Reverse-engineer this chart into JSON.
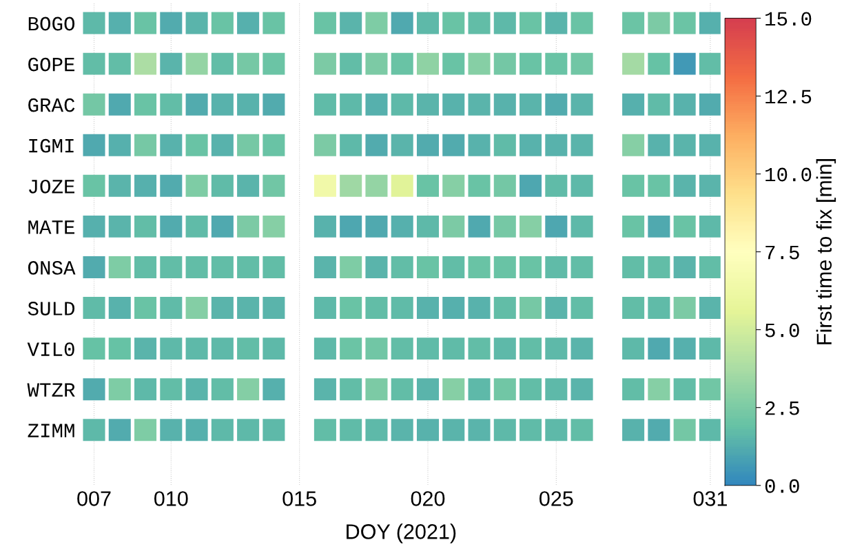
{
  "chart_data": {
    "type": "heatmap",
    "xlabel": "DOY (2021)",
    "clabel": "First time to fix [min]",
    "categories": [
      "007",
      null,
      null,
      "010",
      null,
      null,
      null,
      null,
      "015",
      null,
      null,
      null,
      null,
      "020",
      null,
      null,
      null,
      null,
      "025",
      null,
      null,
      null,
      null,
      null,
      "031"
    ],
    "y_categories": [
      "BOGO",
      "GOPE",
      "GRAC",
      "IGMI",
      "JOZE",
      "MATE",
      "ONSA",
      "SULD",
      "VIL0",
      "WTZR",
      "ZIMM"
    ],
    "cells": [
      [
        1.6,
        1.3,
        2.0,
        1.2,
        1.5,
        2.0,
        1.3,
        2.0,
        null,
        2.0,
        1.5,
        2.6,
        1.1,
        1.6,
        2.0,
        1.8,
        1.6,
        2.0,
        1.5,
        2.0,
        null,
        2.1,
        2.5,
        2.1,
        1.3
      ],
      [
        1.8,
        1.8,
        3.8,
        1.5,
        3.2,
        1.8,
        2.4,
        2.1,
        null,
        2.5,
        1.8,
        2.5,
        2.0,
        3.0,
        2.0,
        2.8,
        2.3,
        2.0,
        2.0,
        2.2,
        null,
        3.6,
        1.9,
        0.6,
        1.8
      ],
      [
        2.3,
        1.1,
        2.0,
        1.8,
        1.2,
        1.4,
        1.4,
        1.2,
        null,
        1.7,
        1.6,
        1.3,
        1.6,
        1.5,
        1.4,
        1.5,
        1.4,
        1.5,
        1.2,
        1.5,
        null,
        1.3,
        1.7,
        1.4,
        1.2
      ],
      [
        1.1,
        1.3,
        2.4,
        1.4,
        2.0,
        1.4,
        2.4,
        2.0,
        null,
        2.5,
        1.6,
        1.2,
        1.5,
        1.2,
        1.2,
        1.4,
        1.7,
        1.4,
        1.4,
        1.5,
        null,
        2.8,
        1.4,
        1.5,
        1.4
      ],
      [
        2.0,
        1.5,
        1.3,
        1.2,
        2.6,
        1.7,
        1.5,
        2.2,
        null,
        6.5,
        3.5,
        3.2,
        5.5,
        2.0,
        2.8,
        2.0,
        2.3,
        1.0,
        1.7,
        1.6,
        null,
        2.0,
        2.0,
        1.5,
        1.5
      ],
      [
        1.3,
        1.5,
        1.8,
        1.2,
        1.7,
        1.1,
        2.5,
        2.8,
        null,
        1.4,
        1.0,
        1.1,
        1.3,
        1.6,
        2.5,
        1.1,
        2.4,
        2.8,
        1.0,
        1.6,
        null,
        2.0,
        1.1,
        2.0,
        1.6
      ],
      [
        1.2,
        2.6,
        1.8,
        1.8,
        1.8,
        1.8,
        1.8,
        1.8,
        null,
        1.5,
        2.6,
        1.5,
        1.8,
        2.0,
        1.8,
        2.0,
        2.0,
        2.0,
        1.7,
        1.8,
        null,
        1.8,
        1.8,
        1.5,
        1.8
      ],
      [
        1.7,
        1.4,
        2.0,
        1.7,
        2.7,
        1.5,
        1.5,
        1.5,
        null,
        1.6,
        2.0,
        1.8,
        1.7,
        1.4,
        1.3,
        1.4,
        1.8,
        2.4,
        1.5,
        1.8,
        null,
        1.8,
        1.7,
        2.5,
        1.5
      ],
      [
        1.9,
        1.9,
        1.5,
        1.6,
        1.6,
        1.6,
        1.8,
        1.6,
        null,
        1.6,
        2.1,
        2.2,
        1.8,
        1.7,
        1.7,
        1.8,
        1.6,
        1.8,
        1.6,
        1.5,
        null,
        1.6,
        1.1,
        1.3,
        1.6
      ],
      [
        1.2,
        2.6,
        1.6,
        1.8,
        1.5,
        1.8,
        2.7,
        1.3,
        null,
        1.5,
        1.8,
        2.5,
        1.8,
        1.5,
        2.8,
        1.6,
        2.2,
        1.8,
        1.6,
        1.5,
        null,
        1.8,
        2.8,
        1.8,
        2.2
      ],
      [
        1.6,
        1.2,
        2.6,
        1.4,
        1.3,
        1.6,
        1.6,
        1.6,
        null,
        1.8,
        1.7,
        1.6,
        1.5,
        1.4,
        1.5,
        1.5,
        1.6,
        1.7,
        1.6,
        1.8,
        null,
        1.4,
        1.2,
        2.3,
        1.6
      ]
    ],
    "clim": [
      0,
      15
    ],
    "cticks": [
      {
        "value": 0,
        "label": "0.0"
      },
      {
        "value": 2.5,
        "label": "2.5"
      },
      {
        "value": 5,
        "label": "5.0"
      },
      {
        "value": 7.5,
        "label": "7.5"
      },
      {
        "value": 10,
        "label": "10.0"
      },
      {
        "value": 12.5,
        "label": "12.5"
      },
      {
        "value": 15,
        "label": "15.0"
      }
    ],
    "grid": "x"
  }
}
